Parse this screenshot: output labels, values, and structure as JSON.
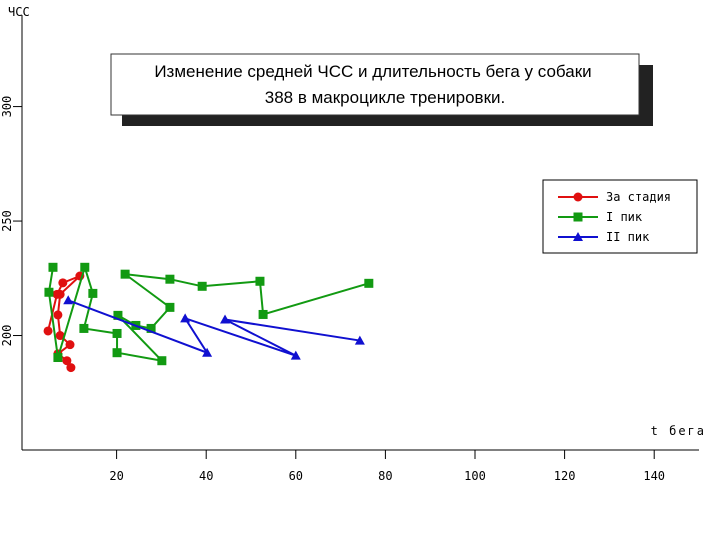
{
  "chart_data": {
    "type": "line",
    "title": "Изменение средней  ЧСС  и длительность бега у собаки",
    "subtitle": "388 в макроцикле тренировки.",
    "y_label": "ЧСС",
    "x_label": "t бега",
    "xlim": [
      0,
      150
    ],
    "xticks": [
      20,
      40,
      60,
      80,
      100,
      120,
      140
    ],
    "ylim": [
      150,
      340
    ],
    "yticks": [
      200,
      250,
      300
    ],
    "legend": "right",
    "series": [
      {
        "name": "За стадия",
        "color": "#e01010",
        "marker": "circle",
        "x": [
          4.7,
          6.7,
          8.0,
          11.8,
          7.4,
          6.9,
          7.4,
          9.6,
          6.9,
          8.9,
          9.8
        ],
        "values": [
          202,
          218,
          223,
          226,
          218,
          209,
          200,
          196,
          192,
          189,
          186
        ]
      },
      {
        "name": "I пик",
        "color": "#129a12",
        "marker": "square",
        "x": [
          5.8,
          4.9,
          6.9,
          12.9,
          14.7,
          12.7,
          20.1,
          20.1,
          30.1,
          20.3,
          24.3,
          27.7,
          31.9,
          21.9,
          31.9,
          39.1,
          52.0,
          52.7,
          76.3
        ],
        "values": [
          229.8,
          218.9,
          190.4,
          229.8,
          218.4,
          203.1,
          200.9,
          192.5,
          189.0,
          208.8,
          204.4,
          203.1,
          212.3,
          226.8,
          224.6,
          221.5,
          223.7,
          209.2,
          222.8
        ]
      },
      {
        "name": "II пик",
        "color": "#1010d0",
        "marker": "triangle",
        "x": [
          9.2,
          40.2,
          35.3,
          60.0,
          44.2,
          74.3
        ],
        "values": [
          215.4,
          192.5,
          207.5,
          191.2,
          207.0,
          197.8
        ]
      }
    ]
  }
}
